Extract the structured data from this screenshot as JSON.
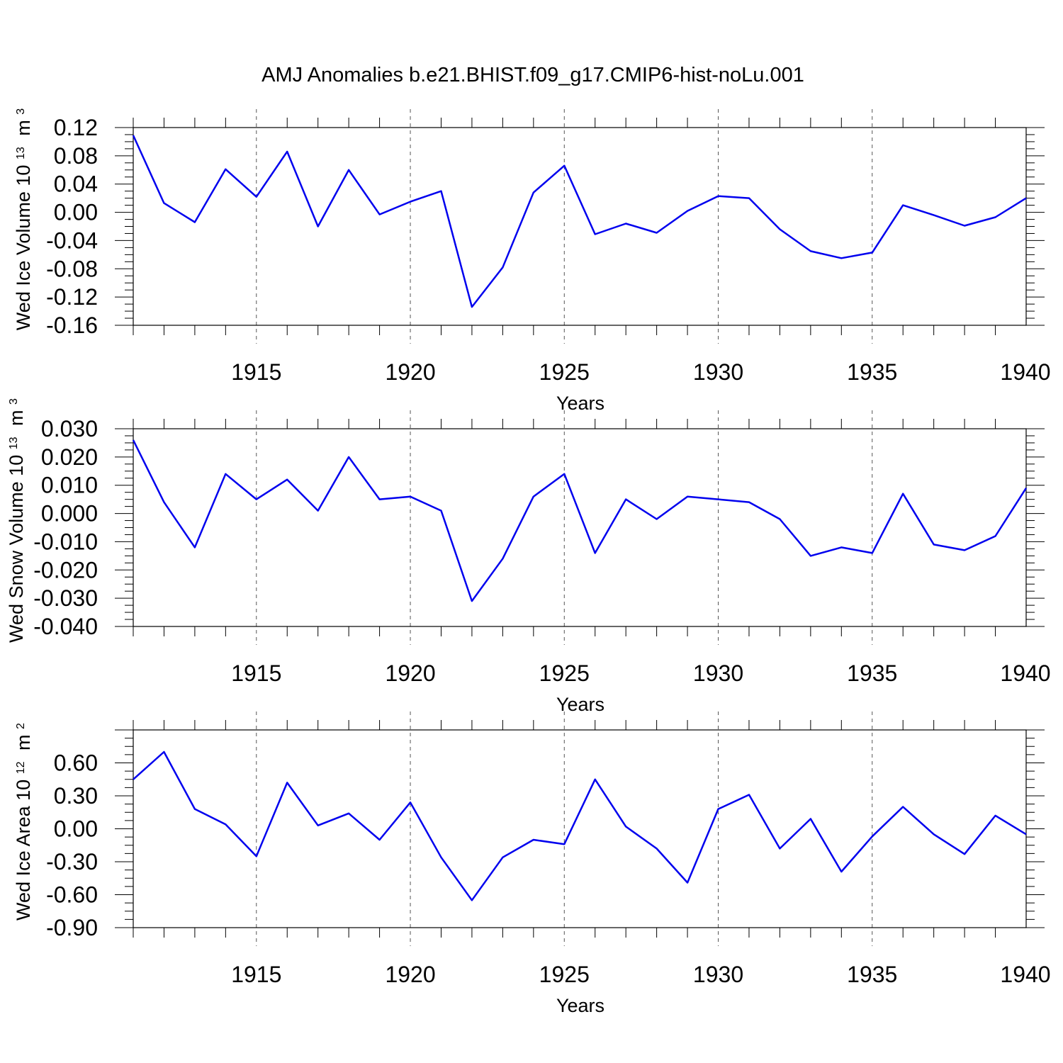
{
  "title": "AMJ Anomalies b.e21.BHIST.f09_g17.CMIP6-hist-noLu.001",
  "line_color": "#0000ee",
  "grid": "dashed vertical at labeled years",
  "chart_data": [
    {
      "type": "line",
      "xlabel": "Years",
      "ylabel_main": "Wed Ice Volume 10",
      "ylabel_exp": "13",
      "ylabel_unit": "m",
      "ylabel_unit_exp": "3",
      "xlim": [
        1911,
        1940
      ],
      "ylim": [
        -0.16,
        0.12
      ],
      "x_ticks": [
        "1915",
        "1920",
        "1925",
        "1930",
        "1935",
        "1940"
      ],
      "y_ticks": [
        "0.12",
        "0.08",
        "0.04",
        "0.00",
        "-0.04",
        "-0.08",
        "-0.12",
        "-0.16"
      ],
      "x": [
        1911,
        1912,
        1913,
        1914,
        1915,
        1916,
        1917,
        1918,
        1919,
        1920,
        1921,
        1922,
        1923,
        1924,
        1925,
        1926,
        1927,
        1928,
        1929,
        1930,
        1931,
        1932,
        1933,
        1934,
        1935,
        1936,
        1937,
        1938,
        1939,
        1940
      ],
      "values": [
        0.109,
        0.013,
        -0.014,
        0.061,
        0.022,
        0.086,
        -0.02,
        0.06,
        -0.003,
        0.015,
        0.03,
        -0.134,
        -0.078,
        0.028,
        0.066,
        -0.031,
        -0.016,
        -0.029,
        0.002,
        0.023,
        0.02,
        -0.024,
        -0.055,
        -0.065,
        -0.057,
        0.01,
        -0.004,
        -0.019,
        -0.007,
        0.02
      ]
    },
    {
      "type": "line",
      "xlabel": "Years",
      "ylabel_main": "Wed Snow Volume 10",
      "ylabel_exp": "13",
      "ylabel_unit": "m",
      "ylabel_unit_exp": "3",
      "xlim": [
        1911,
        1940
      ],
      "ylim": [
        -0.04,
        0.03
      ],
      "x_ticks": [
        "1915",
        "1920",
        "1925",
        "1930",
        "1935",
        "1940"
      ],
      "y_ticks": [
        "0.030",
        "0.020",
        "0.010",
        "0.000",
        "-0.010",
        "-0.020",
        "-0.030",
        "-0.040"
      ],
      "x": [
        1911,
        1912,
        1913,
        1914,
        1915,
        1916,
        1917,
        1918,
        1919,
        1920,
        1921,
        1922,
        1923,
        1924,
        1925,
        1926,
        1927,
        1928,
        1929,
        1930,
        1931,
        1932,
        1933,
        1934,
        1935,
        1936,
        1937,
        1938,
        1939,
        1940
      ],
      "values": [
        0.026,
        0.004,
        -0.012,
        0.014,
        0.005,
        0.012,
        0.001,
        0.02,
        0.005,
        0.006,
        0.001,
        -0.031,
        -0.016,
        0.006,
        0.014,
        -0.014,
        0.005,
        -0.002,
        0.006,
        0.005,
        0.004,
        -0.002,
        -0.015,
        -0.012,
        -0.014,
        0.007,
        -0.011,
        -0.013,
        -0.008,
        0.009
      ]
    },
    {
      "type": "line",
      "xlabel": "Years",
      "ylabel_main": "Wed Ice Area 10",
      "ylabel_exp": "12",
      "ylabel_unit": "m",
      "ylabel_unit_exp": "2",
      "xlim": [
        1911,
        1940
      ],
      "ylim": [
        -0.9,
        0.9
      ],
      "x_ticks": [
        "1915",
        "1920",
        "1925",
        "1930",
        "1935",
        "1940"
      ],
      "y_ticks": [
        "0.60",
        "0.30",
        "0.00",
        "-0.30",
        "-0.60",
        "-0.90"
      ],
      "x": [
        1911,
        1912,
        1913,
        1914,
        1915,
        1916,
        1917,
        1918,
        1919,
        1920,
        1921,
        1922,
        1923,
        1924,
        1925,
        1926,
        1927,
        1928,
        1929,
        1930,
        1931,
        1932,
        1933,
        1934,
        1935,
        1936,
        1937,
        1938,
        1939,
        1940
      ],
      "values": [
        0.45,
        0.7,
        0.18,
        0.04,
        -0.25,
        0.42,
        0.03,
        0.14,
        -0.1,
        0.24,
        -0.26,
        -0.65,
        -0.26,
        -0.1,
        -0.14,
        0.45,
        0.02,
        -0.18,
        -0.49,
        0.18,
        0.31,
        -0.18,
        0.09,
        -0.39,
        -0.07,
        0.2,
        -0.05,
        -0.23,
        0.12,
        -0.05
      ]
    }
  ]
}
